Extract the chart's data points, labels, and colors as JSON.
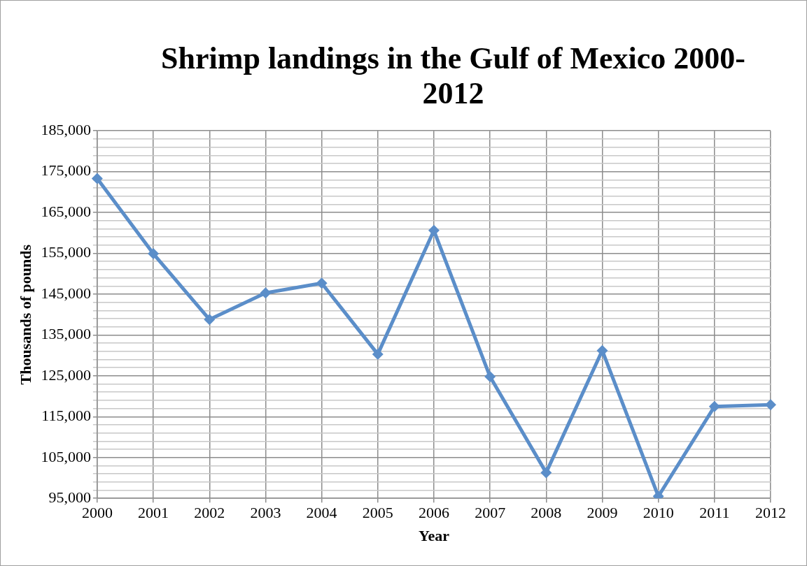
{
  "chart_data": {
    "type": "line",
    "title": "Shrimp landings in the Gulf of Mexico 2000-2012",
    "xlabel": "Year",
    "ylabel": "Thousands of pounds",
    "categories": [
      "2000",
      "2001",
      "2002",
      "2003",
      "2004",
      "2005",
      "2006",
      "2007",
      "2008",
      "2009",
      "2010",
      "2011",
      "2012"
    ],
    "series": [
      {
        "color": "#5b8ec9",
        "values": [
          173300,
          154900,
          138800,
          145300,
          147700,
          130300,
          160600,
          124800,
          101300,
          131200,
          95500,
          117500,
          117900
        ]
      }
    ],
    "ylim": [
      95000,
      185000
    ],
    "yticks": [
      {
        "value": 95000,
        "label": "95,000"
      },
      {
        "value": 97000,
        "label": null
      },
      {
        "value": 99000,
        "label": null
      },
      {
        "value": 101000,
        "label": null
      },
      {
        "value": 103000,
        "label": null
      },
      {
        "value": 105000,
        "label": "105,000"
      },
      {
        "value": 107000,
        "label": null
      },
      {
        "value": 109000,
        "label": null
      },
      {
        "value": 111000,
        "label": null
      },
      {
        "value": 113000,
        "label": null
      },
      {
        "value": 115000,
        "label": "115,000"
      },
      {
        "value": 117000,
        "label": null
      },
      {
        "value": 119000,
        "label": null
      },
      {
        "value": 121000,
        "label": null
      },
      {
        "value": 123000,
        "label": null
      },
      {
        "value": 125000,
        "label": "125,000"
      },
      {
        "value": 127000,
        "label": null
      },
      {
        "value": 129000,
        "label": null
      },
      {
        "value": 131000,
        "label": null
      },
      {
        "value": 133000,
        "label": null
      },
      {
        "value": 135000,
        "label": "135,000"
      },
      {
        "value": 137000,
        "label": null
      },
      {
        "value": 139000,
        "label": null
      },
      {
        "value": 141000,
        "label": null
      },
      {
        "value": 143000,
        "label": null
      },
      {
        "value": 145000,
        "label": "145,000"
      },
      {
        "value": 147000,
        "label": null
      },
      {
        "value": 149000,
        "label": null
      },
      {
        "value": 151000,
        "label": null
      },
      {
        "value": 153000,
        "label": null
      },
      {
        "value": 155000,
        "label": "155,000"
      },
      {
        "value": 157000,
        "label": null
      },
      {
        "value": 159000,
        "label": null
      },
      {
        "value": 161000,
        "label": null
      },
      {
        "value": 163000,
        "label": null
      },
      {
        "value": 165000,
        "label": "165,000"
      },
      {
        "value": 167000,
        "label": null
      },
      {
        "value": 169000,
        "label": null
      },
      {
        "value": 171000,
        "label": null
      },
      {
        "value": 173000,
        "label": null
      },
      {
        "value": 175000,
        "label": "175,000"
      },
      {
        "value": 177000,
        "label": null
      },
      {
        "value": 179000,
        "label": null
      },
      {
        "value": 181000,
        "label": null
      },
      {
        "value": 183000,
        "label": null
      },
      {
        "value": 185000,
        "label": "185,000"
      }
    ],
    "grid": true,
    "legend": false,
    "marker": "diamond",
    "line_style": "solid"
  }
}
